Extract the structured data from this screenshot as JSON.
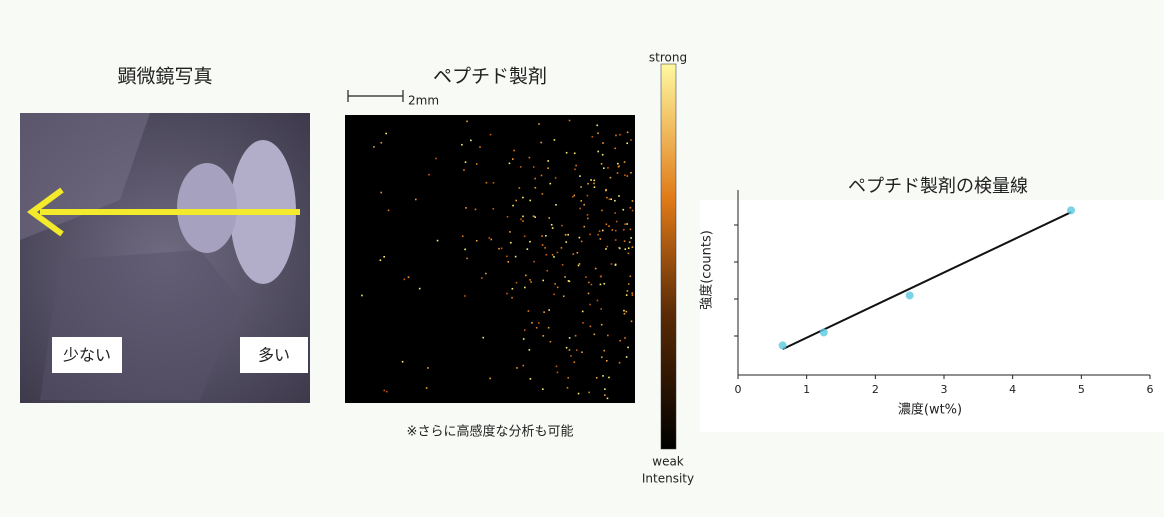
{
  "microscope": {
    "title": "顕微鏡写真",
    "label_low": "少ない",
    "label_high": "多い"
  },
  "imaging": {
    "title": "ペプチド製剤",
    "scale_label": "2mm",
    "note": "※さらに高感度な分析も可能"
  },
  "colorbar": {
    "top_label": "strong",
    "bottom_label": "weak",
    "caption": "Intensity"
  },
  "chart_data": {
    "type": "scatter",
    "title": "ペプチド製剤の検量線",
    "x_label": "濃度(wt%)",
    "y_label": "強度(counts)",
    "points": {
      "color": "#5bc8e0",
      "x": [
        0.65,
        1.25,
        2.5,
        4.85
      ],
      "values": [
        16,
        23,
        43,
        89
      ]
    },
    "fit_line": {
      "color": "#111111",
      "x": [
        0.65,
        4.85
      ],
      "values": [
        14,
        88
      ]
    },
    "xlim": [
      0,
      6
    ],
    "xticks": [
      0,
      1,
      2,
      3,
      4,
      5,
      6
    ],
    "ylim": [
      0,
      100
    ]
  }
}
